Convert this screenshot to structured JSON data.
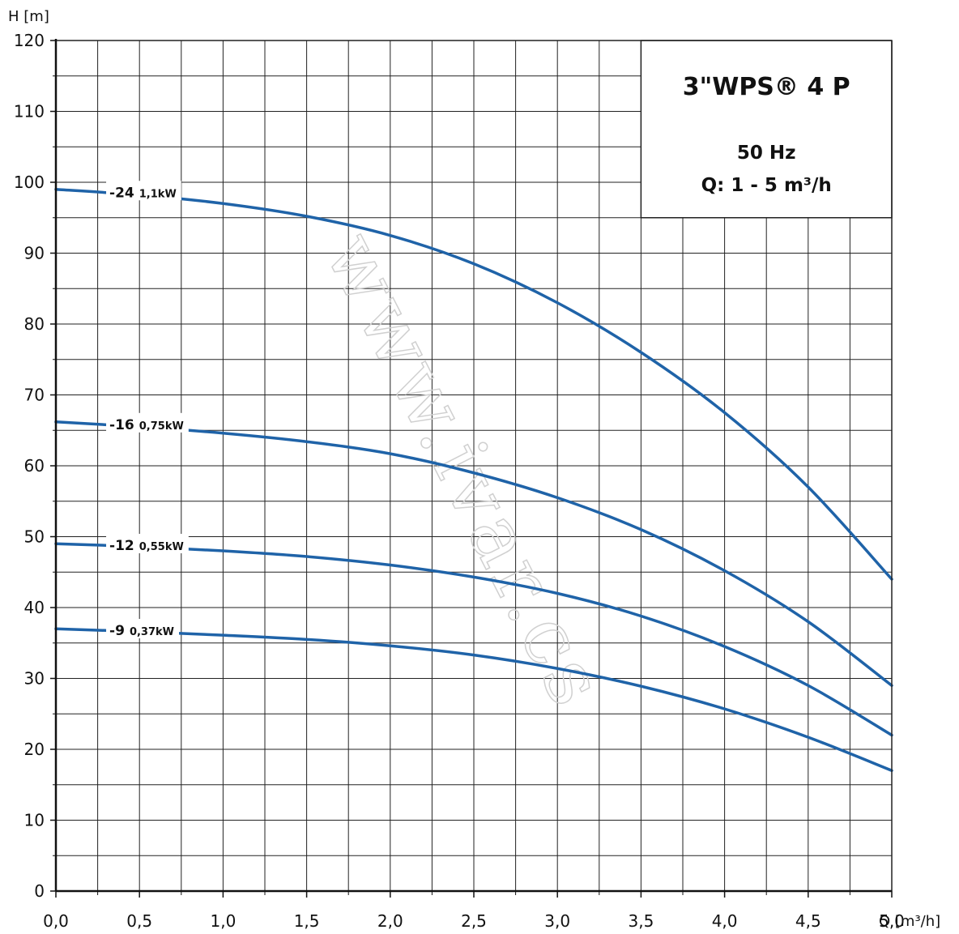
{
  "chart_data": {
    "type": "line",
    "title": "3\"WPS® 4 P",
    "subtitle_lines": [
      "50 Hz",
      "Q: 1 - 5 m³/h"
    ],
    "xlabel": "Q [m³/h]",
    "ylabel": "H [m]",
    "xlim": [
      0,
      5
    ],
    "ylim": [
      0,
      120
    ],
    "x_ticks": [
      0,
      0.5,
      1,
      1.5,
      2,
      2.5,
      3,
      3.5,
      4,
      4.5,
      5
    ],
    "x_tick_labels": [
      "0,0",
      "0,5",
      "1,0",
      "1,5",
      "2,0",
      "2,5",
      "3,0",
      "3,5",
      "4,0",
      "4,5",
      "5,0"
    ],
    "y_ticks": [
      0,
      10,
      20,
      30,
      40,
      50,
      60,
      70,
      80,
      90,
      100,
      110,
      120
    ],
    "y_tick_labels": [
      "0",
      "10",
      "20",
      "30",
      "40",
      "50",
      "60",
      "70",
      "80",
      "90",
      "100",
      "110",
      "120"
    ],
    "grid": true,
    "line_color": "#1f63a8",
    "watermark": "www.ivar.cs",
    "series": [
      {
        "name": "-24",
        "power": "1,1kW",
        "x": [
          0,
          0.5,
          1,
          1.5,
          2,
          2.5,
          3,
          3.5,
          4,
          4.5,
          5
        ],
        "y": [
          99,
          98.2,
          97,
          95.2,
          92.5,
          88.5,
          83,
          76,
          67.5,
          57,
          44
        ]
      },
      {
        "name": "-16",
        "power": "0,75kW",
        "x": [
          0,
          0.5,
          1,
          1.5,
          2,
          2.5,
          3,
          3.5,
          4,
          4.5,
          5
        ],
        "y": [
          66.2,
          65.5,
          64.6,
          63.4,
          61.7,
          59,
          55.5,
          51,
          45.2,
          38,
          29
        ]
      },
      {
        "name": "-12",
        "power": "0,55kW",
        "x": [
          0,
          0.5,
          1,
          1.5,
          2,
          2.5,
          3,
          3.5,
          4,
          4.5,
          5
        ],
        "y": [
          49,
          48.6,
          48,
          47.2,
          46,
          44.3,
          42,
          38.8,
          34.5,
          29,
          22
        ]
      },
      {
        "name": "-9",
        "power": "0,37kW",
        "x": [
          0,
          0.5,
          1,
          1.5,
          2,
          2.5,
          3,
          3.5,
          4,
          4.5,
          5
        ],
        "y": [
          37,
          36.6,
          36.1,
          35.5,
          34.6,
          33.3,
          31.4,
          28.9,
          25.7,
          21.7,
          17
        ]
      }
    ]
  }
}
